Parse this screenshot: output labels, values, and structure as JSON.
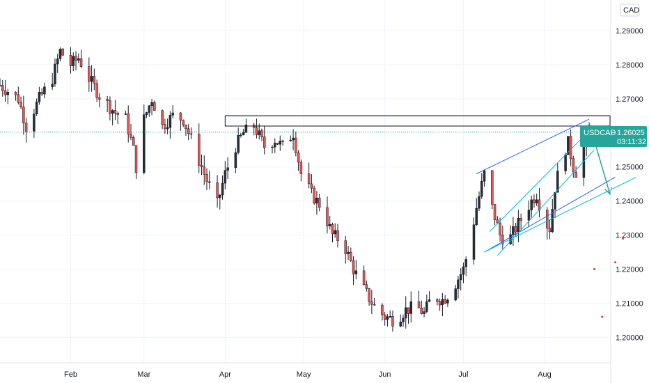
{
  "currency_badge": "CAD",
  "price_label": {
    "symbol": "USDCAD",
    "separator": "−",
    "price": "1.26025",
    "countdown": "03:11:32",
    "value": 1.26025,
    "color": "#26a69a"
  },
  "chart_data": {
    "type": "candlestick",
    "title": "",
    "xlabel": "",
    "ylabel": "",
    "ylim": [
      1.1925,
      1.299
    ],
    "y_ticks": [
      "1.29000",
      "1.28000",
      "1.27000",
      "1.26000",
      "1.25000",
      "1.24000",
      "1.23000",
      "1.22000",
      "1.21000",
      "1.20000"
    ],
    "y_tick_values": [
      1.29,
      1.28,
      1.27,
      1.26,
      1.25,
      1.24,
      1.23,
      1.22,
      1.21,
      1.2
    ],
    "x_range": [
      "2021-01-05",
      "2021-08-26"
    ],
    "x_ticks": [
      "Feb",
      "Mar",
      "Apr",
      "May",
      "Jun",
      "Jul",
      "Aug"
    ],
    "x_tick_dates": [
      "2021-02-01",
      "2021-03-01",
      "2021-04-01",
      "2021-05-01",
      "2021-06-01",
      "2021-07-01",
      "2021-08-01"
    ],
    "grid": true,
    "colors": {
      "up": "#26a69a",
      "down": "#ef5350",
      "wick": "#131722",
      "body": "#2a2e39",
      "channel": "#2962ff",
      "trend": "#00bcd4",
      "arrow": "#26a69a",
      "box": "#131722",
      "dot": "#e53935",
      "grid": "#f0f3fa"
    },
    "price_path": [
      [
        "2021-01-05",
        1.274
      ],
      [
        "2021-01-12",
        1.27
      ],
      [
        "2021-01-15",
        1.262
      ],
      [
        "2021-01-20",
        1.27
      ],
      [
        "2021-01-25",
        1.276
      ],
      [
        "2021-01-28",
        1.284
      ],
      [
        "2021-02-01",
        1.28
      ],
      [
        "2021-02-04",
        1.282
      ],
      [
        "2021-02-08",
        1.276
      ],
      [
        "2021-02-12",
        1.271
      ],
      [
        "2021-02-18",
        1.266
      ],
      [
        "2021-02-22",
        1.264
      ],
      [
        "2021-02-25",
        1.255
      ],
      [
        "2021-02-26",
        1.25
      ],
      [
        "2021-03-01",
        1.264
      ],
      [
        "2021-03-04",
        1.27
      ],
      [
        "2021-03-08",
        1.262
      ],
      [
        "2021-03-12",
        1.265
      ],
      [
        "2021-03-16",
        1.264
      ],
      [
        "2021-03-18",
        1.26
      ],
      [
        "2021-03-22",
        1.252
      ],
      [
        "2021-03-25",
        1.246
      ],
      [
        "2021-03-29",
        1.239
      ],
      [
        "2021-04-01",
        1.248
      ],
      [
        "2021-04-05",
        1.256
      ],
      [
        "2021-04-08",
        1.26
      ],
      [
        "2021-04-12",
        1.262
      ],
      [
        "2021-04-16",
        1.256
      ],
      [
        "2021-04-20",
        1.258
      ],
      [
        "2021-04-23",
        1.256
      ],
      [
        "2021-04-27",
        1.26
      ],
      [
        "2021-04-30",
        1.248
      ],
      [
        "2021-05-04",
        1.242
      ],
      [
        "2021-05-08",
        1.238
      ],
      [
        "2021-05-12",
        1.23
      ],
      [
        "2021-05-16",
        1.228
      ],
      [
        "2021-05-20",
        1.22
      ],
      [
        "2021-05-24",
        1.214
      ],
      [
        "2021-05-28",
        1.209
      ],
      [
        "2021-06-01",
        1.206
      ],
      [
        "2021-06-05",
        1.205
      ],
      [
        "2021-06-09",
        1.208
      ],
      [
        "2021-06-13",
        1.209
      ],
      [
        "2021-06-16",
        1.207
      ],
      [
        "2021-06-19",
        1.212
      ],
      [
        "2021-06-23",
        1.211
      ],
      [
        "2021-06-26",
        1.213
      ],
      [
        "2021-07-01",
        1.22
      ],
      [
        "2021-07-03",
        1.226
      ],
      [
        "2021-07-06",
        1.238
      ],
      [
        "2021-07-09",
        1.248
      ],
      [
        "2021-07-12",
        1.238
      ],
      [
        "2021-07-15",
        1.23
      ],
      [
        "2021-07-18",
        1.228
      ],
      [
        "2021-07-21",
        1.232
      ],
      [
        "2021-07-24",
        1.236
      ],
      [
        "2021-07-27",
        1.24
      ],
      [
        "2021-07-29",
        1.242
      ],
      [
        "2021-08-01",
        1.234
      ],
      [
        "2021-08-03",
        1.232
      ],
      [
        "2021-08-05",
        1.244
      ],
      [
        "2021-08-08",
        1.254
      ],
      [
        "2021-08-10",
        1.257
      ],
      [
        "2021-08-12",
        1.25
      ],
      [
        "2021-08-14",
        1.247
      ],
      [
        "2021-08-16",
        1.256
      ],
      [
        "2021-08-18",
        1.26
      ]
    ],
    "drawings": {
      "resistance_box": {
        "from": "2021-04-01",
        "to": "2021-08-26",
        "top": 1.265,
        "bottom": 1.262
      },
      "box_tab": {
        "from": "2021-08-18",
        "to": "2021-08-26",
        "top": 1.265,
        "bottom": 1.262
      },
      "channel_upper": [
        [
          "2021-07-06",
          1.248
        ],
        [
          "2021-08-18",
          1.264
        ]
      ],
      "channel_lower": [
        [
          "2021-07-09",
          1.225
        ],
        [
          "2021-08-28",
          1.247
        ]
      ],
      "inner_upper": [
        [
          "2021-07-11",
          1.231
        ],
        [
          "2021-08-16",
          1.259
        ]
      ],
      "inner_lower": [
        [
          "2021-07-14",
          1.224
        ],
        [
          "2021-08-20",
          1.255
        ]
      ],
      "support_line": [
        [
          "2021-07-09",
          1.225
        ],
        [
          "2021-09-05",
          1.247
        ]
      ],
      "arrow": [
        [
          "2021-08-18",
          1.263
        ],
        [
          "2021-08-26",
          1.242
        ]
      ],
      "dots": [
        [
          "2021-08-20",
          1.22
        ],
        [
          "2021-08-23",
          1.206
        ],
        [
          "2021-08-28",
          1.222
        ],
        [
          "2021-08-31",
          1.229
        ]
      ]
    }
  }
}
